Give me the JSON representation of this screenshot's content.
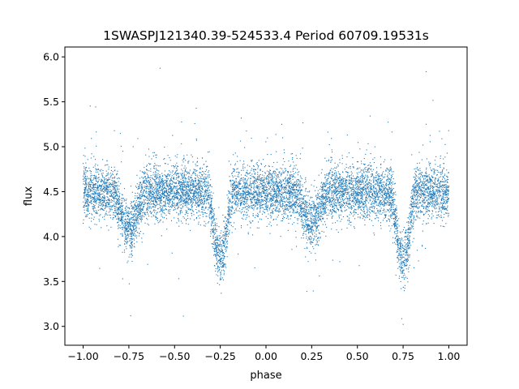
{
  "chart_data": {
    "type": "scatter",
    "title": "1SWASPJ121340.39-524533.4 Period 60709.19531s",
    "xlabel": "phase",
    "ylabel": "flux",
    "xlim": [
      -1.1,
      1.1
    ],
    "ylim": [
      2.79,
      6.11
    ],
    "x_ticks": [
      -1.0,
      -0.75,
      -0.5,
      -0.25,
      0.0,
      0.25,
      0.5,
      0.75,
      1.0
    ],
    "x_tick_labels": [
      "−1.00",
      "−0.75",
      "−0.50",
      "−0.25",
      "0.00",
      "0.25",
      "0.50",
      "0.75",
      "1.00"
    ],
    "y_ticks": [
      3.0,
      3.5,
      4.0,
      4.5,
      5.0,
      5.5,
      6.0
    ],
    "y_tick_labels": [
      "3.0",
      "3.5",
      "4.0",
      "4.5",
      "5.0",
      "5.5",
      "6.0"
    ],
    "grid": false,
    "legend": false,
    "point_color": "#1f77b4",
    "series": [
      {
        "phase_range": [
          -1.0,
          1.0
        ],
        "baseline_flux": 4.5,
        "eclipses": [
          {
            "center_phase": -0.75,
            "min_flux": 4.1,
            "half_width_phase": 0.09
          },
          {
            "center_phase": -0.25,
            "min_flux": 3.77,
            "half_width_phase": 0.07
          },
          {
            "center_phase": 0.25,
            "min_flux": 4.15,
            "half_width_phase": 0.09
          },
          {
            "center_phase": 0.75,
            "min_flux": 3.75,
            "half_width_phase": 0.07
          }
        ],
        "flux_spread_sd": 0.15
      }
    ]
  }
}
